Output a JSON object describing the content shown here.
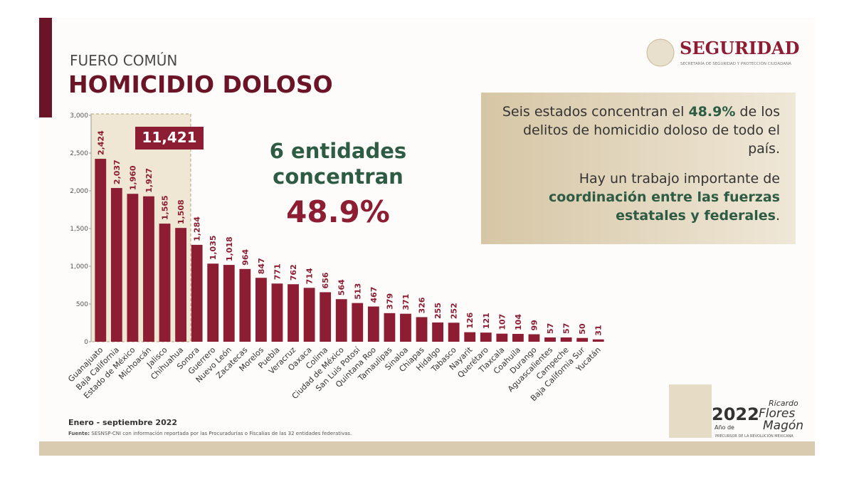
{
  "header": {
    "kicker": "FUERO COMÚN",
    "title": "HOMICIDIO DOLOSO"
  },
  "brand": {
    "name": "SEGURIDAD",
    "subtitle": "SECRETARÍA DE SEGURIDAD Y PROTECCIÓN CIUDADANA"
  },
  "chart_data": {
    "type": "bar",
    "categories": [
      "Guanajuato",
      "Baja California",
      "Estado de México",
      "Michoacán",
      "Jalisco",
      "Chihuahua",
      "Sonora",
      "Guerrero",
      "Nuevo León",
      "Zacatecas",
      "Morelos",
      "Puebla",
      "Veracruz",
      "Oaxaca",
      "Colima",
      "Ciudad de México",
      "San Luis Potosí",
      "Quintana Roo",
      "Tamaulipas",
      "Sinaloa",
      "Chiapas",
      "Hidalgo",
      "Tabasco",
      "Nayarit",
      "Querétaro",
      "Tlaxcala",
      "Coahuila",
      "Durango",
      "Aguascalientes",
      "Campeche",
      "Baja California Sur",
      "Yucatán"
    ],
    "values": [
      2424,
      2037,
      1960,
      1927,
      1565,
      1508,
      1284,
      1035,
      1018,
      964,
      847,
      771,
      762,
      714,
      656,
      564,
      513,
      467,
      379,
      371,
      326,
      255,
      252,
      126,
      121,
      107,
      104,
      99,
      57,
      57,
      50,
      31
    ],
    "value_labels": [
      "2,424",
      "2,037",
      "1,960",
      "1,927",
      "1,565",
      "1,508",
      "1,284",
      "1,035",
      "1,018",
      "964",
      "847",
      "771",
      "762",
      "714",
      "656",
      "564",
      "513",
      "467",
      "379",
      "371",
      "326",
      "255",
      "252",
      "126",
      "121",
      "107",
      "104",
      "99",
      "57",
      "57",
      "50",
      "31"
    ],
    "color": "#8c1d32",
    "ylim": [
      0,
      3000
    ],
    "yticks": [
      0,
      500,
      {
        "value": 1000,
        "label": "1,000"
      },
      {
        "value": 1500,
        "label": "1,500"
      },
      {
        "value": 2000,
        "label": "2,000"
      },
      {
        "value": 2500,
        "label": "2,500"
      },
      {
        "value": 3000,
        "label": "3,000"
      }
    ],
    "highlight_total": "11,421",
    "headline": "6 entidades concentran",
    "headline_value": "48.9%"
  },
  "panel": {
    "p1": [
      "Seis estados concentran el ",
      "48.9%",
      " de los delitos de homicidio doloso de todo el país."
    ],
    "p2": [
      "Hay un trabajo importante de ",
      "coordinación entre las fuerzas estatales y federales",
      "."
    ]
  },
  "footer": {
    "period": "Enero - septiembre 2022",
    "source_label": "Fuente:",
    "source": "SESNSP-CNI con información reportada por las Procuradurías o Fiscalías de las 32 entidades federativas."
  },
  "logo": {
    "year": "2022",
    "ano": "Año de",
    "first": "Ricardo",
    "name1": "Flores",
    "name2": "Magón",
    "tagline": "PRECURSOR DE LA REVOLUCIÓN MEXICANA"
  }
}
